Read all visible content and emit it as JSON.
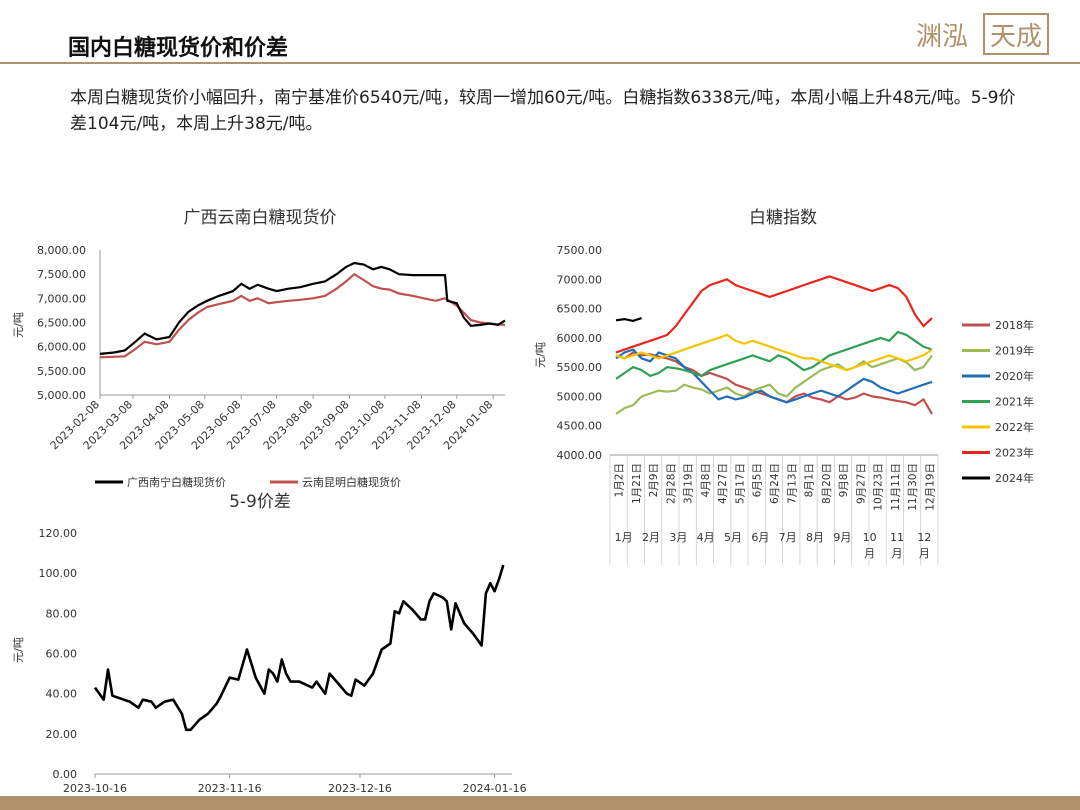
{
  "header": {
    "title": "国内白糖现货价和价差",
    "logo_text": "渊泓天成"
  },
  "summary": "本周白糖现货价小幅回升，南宁基准价6540元/吨，较周一增加60元/吨。白糖指数6338元/吨，本周小幅上升48元/吨。5-9价差104元/吨，本周上升38元/吨。",
  "chart_data": [
    {
      "type": "line",
      "title": "广西云南白糖现货价",
      "ylabel": "元/吨",
      "ylim": [
        5000,
        8000
      ],
      "yticks": [
        "5,000.00",
        "5,500.00",
        "6,000.00",
        "6,500.00",
        "7,000.00",
        "7,500.00",
        "8,000.00"
      ],
      "xticks": [
        "2023-02-08",
        "2023-03-08",
        "2023-04-08",
        "2023-05-08",
        "2023-06-08",
        "2023-07-08",
        "2023-08-08",
        "2023-09-08",
        "2023-10-08",
        "2023-11-08",
        "2023-12-08",
        "2024-01-08"
      ],
      "x_range": [
        "2023-02-08",
        "2024-01-18"
      ],
      "legend_position": "bottom",
      "series": [
        {
          "name": "广西南宁白糖现货价",
          "color": "#000000",
          "points": [
            [
              "2023-02-08",
              5850
            ],
            [
              "2023-02-20",
              5880
            ],
            [
              "2023-03-01",
              5920
            ],
            [
              "2023-03-10",
              6100
            ],
            [
              "2023-03-18",
              6270
            ],
            [
              "2023-03-28",
              6150
            ],
            [
              "2023-04-08",
              6200
            ],
            [
              "2023-04-16",
              6500
            ],
            [
              "2023-04-24",
              6720
            ],
            [
              "2023-05-02",
              6850
            ],
            [
              "2023-05-10",
              6950
            ],
            [
              "2023-05-20",
              7050
            ],
            [
              "2023-06-01",
              7150
            ],
            [
              "2023-06-08",
              7300
            ],
            [
              "2023-06-15",
              7200
            ],
            [
              "2023-06-22",
              7280
            ],
            [
              "2023-07-01",
              7200
            ],
            [
              "2023-07-08",
              7150
            ],
            [
              "2023-07-18",
              7200
            ],
            [
              "2023-07-28",
              7230
            ],
            [
              "2023-08-08",
              7300
            ],
            [
              "2023-08-18",
              7350
            ],
            [
              "2023-08-28",
              7500
            ],
            [
              "2023-09-05",
              7650
            ],
            [
              "2023-09-12",
              7730
            ],
            [
              "2023-09-20",
              7700
            ],
            [
              "2023-09-28",
              7600
            ],
            [
              "2023-10-05",
              7650
            ],
            [
              "2023-10-12",
              7600
            ],
            [
              "2023-10-20",
              7500
            ],
            [
              "2023-11-01",
              7480
            ],
            [
              "2023-11-10",
              7480
            ],
            [
              "2023-11-20",
              7480
            ],
            [
              "2023-11-28",
              7480
            ],
            [
              "2023-11-30",
              6950
            ],
            [
              "2023-12-08",
              6900
            ],
            [
              "2023-12-14",
              6600
            ],
            [
              "2023-12-20",
              6430
            ],
            [
              "2023-12-28",
              6450
            ],
            [
              "2024-01-05",
              6480
            ],
            [
              "2024-01-12",
              6450
            ],
            [
              "2024-01-18",
              6540
            ]
          ]
        },
        {
          "name": "云南昆明白糖现货价",
          "color": "#c0504d",
          "points": [
            [
              "2023-02-08",
              5780
            ],
            [
              "2023-02-20",
              5790
            ],
            [
              "2023-03-01",
              5800
            ],
            [
              "2023-03-10",
              5950
            ],
            [
              "2023-03-18",
              6100
            ],
            [
              "2023-03-28",
              6050
            ],
            [
              "2023-04-08",
              6100
            ],
            [
              "2023-04-16",
              6350
            ],
            [
              "2023-04-24",
              6550
            ],
            [
              "2023-05-02",
              6700
            ],
            [
              "2023-05-10",
              6820
            ],
            [
              "2023-05-20",
              6880
            ],
            [
              "2023-06-01",
              6950
            ],
            [
              "2023-06-08",
              7050
            ],
            [
              "2023-06-15",
              6950
            ],
            [
              "2023-06-22",
              7000
            ],
            [
              "2023-07-01",
              6900
            ],
            [
              "2023-07-08",
              6920
            ],
            [
              "2023-07-18",
              6950
            ],
            [
              "2023-07-28",
              6970
            ],
            [
              "2023-08-08",
              7000
            ],
            [
              "2023-08-18",
              7050
            ],
            [
              "2023-08-28",
              7200
            ],
            [
              "2023-09-05",
              7350
            ],
            [
              "2023-09-12",
              7500
            ],
            [
              "2023-09-20",
              7380
            ],
            [
              "2023-09-28",
              7250
            ],
            [
              "2023-10-05",
              7200
            ],
            [
              "2023-10-12",
              7180
            ],
            [
              "2023-10-20",
              7100
            ],
            [
              "2023-11-01",
              7050
            ],
            [
              "2023-11-10",
              7000
            ],
            [
              "2023-11-20",
              6950
            ],
            [
              "2023-11-28",
              7000
            ],
            [
              "2023-12-08",
              6850
            ],
            [
              "2023-12-14",
              6700
            ],
            [
              "2023-12-20",
              6550
            ],
            [
              "2023-12-28",
              6500
            ],
            [
              "2024-01-05",
              6480
            ],
            [
              "2024-01-12",
              6460
            ],
            [
              "2024-01-18",
              6450
            ]
          ]
        }
      ]
    },
    {
      "type": "line",
      "title": "白糖指数",
      "ylabel": "元/吨",
      "ylim": [
        4000,
        7500
      ],
      "yticks": [
        "4000.00",
        "4500.00",
        "5000.00",
        "5500.00",
        "6000.00",
        "6500.00",
        "7000.00",
        "7500.00"
      ],
      "xticks": [
        "1月2日",
        "1月21日",
        "2月9日",
        "2月28日",
        "3月19日",
        "4月8日",
        "4月27日",
        "5月17日",
        "6月5日",
        "6月24日",
        "7月13日",
        "8月1日",
        "8月20日",
        "9月8日",
        "9月27日",
        "10月23日",
        "11月11日",
        "11月30日",
        "12月19日"
      ],
      "month_labels": [
        "1月",
        "2月",
        "3月",
        "4月",
        "5月",
        "6月",
        "7月",
        "8月",
        "9月",
        "10月",
        "11月",
        "12月"
      ],
      "legend_position": "right",
      "series": [
        {
          "name": "2018年",
          "color": "#c0504d",
          "values": [
            5700,
            5650,
            5750,
            5700,
            5720,
            5680,
            5650,
            5600,
            5500,
            5450,
            5350,
            5400,
            5350,
            5300,
            5200,
            5150,
            5100,
            5050,
            5000,
            4950,
            4900,
            5000,
            5050,
            4980,
            4950,
            4900,
            5000,
            4950,
            4980,
            5050,
            5000,
            4980,
            4950,
            4920,
            4900,
            4850,
            4950,
            4700
          ]
        },
        {
          "name": "2019年",
          "color": "#9bbb59",
          "values": [
            4700,
            4800,
            4850,
            5000,
            5050,
            5100,
            5080,
            5100,
            5200,
            5150,
            5120,
            5050,
            5100,
            5150,
            5050,
            5000,
            5100,
            5150,
            5200,
            5050,
            5000,
            5150,
            5250,
            5350,
            5450,
            5500,
            5550,
            5450,
            5500,
            5600,
            5500,
            5550,
            5600,
            5650,
            5580,
            5450,
            5500,
            5700
          ]
        },
        {
          "name": "2020年",
          "color": "#1f6fb5",
          "values": [
            5650,
            5750,
            5800,
            5650,
            5600,
            5750,
            5700,
            5650,
            5500,
            5400,
            5250,
            5100,
            4950,
            5000,
            4950,
            4980,
            5050,
            5100,
            5000,
            4950,
            4900,
            4950,
            5000,
            5050,
            5100,
            5050,
            5000,
            5100,
            5200,
            5300,
            5250,
            5150,
            5100,
            5050,
            5100,
            5150,
            5200,
            5250
          ]
        },
        {
          "name": "2021年",
          "color": "#2ea152",
          "values": [
            5300,
            5400,
            5500,
            5450,
            5350,
            5400,
            5500,
            5480,
            5450,
            5400,
            5350,
            5450,
            5500,
            5550,
            5600,
            5650,
            5700,
            5650,
            5600,
            5700,
            5650,
            5550,
            5450,
            5500,
            5600,
            5700,
            5750,
            5800,
            5850,
            5900,
            5950,
            6000,
            5950,
            6100,
            6050,
            5950,
            5850,
            5800
          ]
        },
        {
          "name": "2022年",
          "color": "#f5c400",
          "values": [
            5700,
            5650,
            5700,
            5750,
            5700,
            5650,
            5700,
            5750,
            5800,
            5850,
            5900,
            5950,
            6000,
            6050,
            5950,
            5900,
            5950,
            5900,
            5850,
            5800,
            5750,
            5700,
            5650,
            5650,
            5600,
            5550,
            5500,
            5450,
            5500,
            5550,
            5600,
            5650,
            5700,
            5650,
            5600,
            5650,
            5700,
            5800
          ]
        },
        {
          "name": "2023年",
          "color": "#e8261c",
          "values": [
            5750,
            5800,
            5850,
            5900,
            5950,
            6000,
            6050,
            6200,
            6400,
            6600,
            6800,
            6900,
            6950,
            7000,
            6900,
            6850,
            6800,
            6750,
            6700,
            6750,
            6800,
            6850,
            6900,
            6950,
            7000,
            7050,
            7000,
            6950,
            6900,
            6850,
            6800,
            6850,
            6900,
            6850,
            6700,
            6400,
            6200,
            6338
          ]
        },
        {
          "name": "2024年",
          "color": "#000000",
          "values": [
            6300,
            6320,
            6290,
            6338
          ]
        }
      ]
    },
    {
      "type": "line",
      "title": "5-9价差",
      "ylabel": "元/吨",
      "ylim": [
        0,
        120
      ],
      "yticks": [
        "0.00",
        "20.00",
        "40.00",
        "60.00",
        "80.00",
        "100.00",
        "120.00"
      ],
      "xticks": [
        "2023-10-16",
        "2023-11-16",
        "2023-12-16",
        "2024-01-16"
      ],
      "x_range": [
        "2023-10-16",
        "2024-01-20"
      ],
      "series": [
        {
          "name": "5-9价差",
          "color": "#000000",
          "points": [
            [
              "2023-10-16",
              43
            ],
            [
              "2023-10-18",
              37
            ],
            [
              "2023-10-19",
              52
            ],
            [
              "2023-10-20",
              39
            ],
            [
              "2023-10-24",
              36
            ],
            [
              "2023-10-26",
              33
            ],
            [
              "2023-10-27",
              37
            ],
            [
              "2023-10-29",
              36
            ],
            [
              "2023-10-30",
              33
            ],
            [
              "2023-11-01",
              36
            ],
            [
              "2023-11-03",
              37
            ],
            [
              "2023-11-05",
              30
            ],
            [
              "2023-11-06",
              22
            ],
            [
              "2023-11-07",
              22
            ],
            [
              "2023-11-09",
              27
            ],
            [
              "2023-11-11",
              30
            ],
            [
              "2023-11-13",
              35
            ],
            [
              "2023-11-14",
              39
            ],
            [
              "2023-11-16",
              48
            ],
            [
              "2023-11-18",
              47
            ],
            [
              "2023-11-20",
              62
            ],
            [
              "2023-11-22",
              48
            ],
            [
              "2023-11-24",
              40
            ],
            [
              "2023-11-25",
              52
            ],
            [
              "2023-11-26",
              50
            ],
            [
              "2023-11-27",
              46
            ],
            [
              "2023-11-28",
              57
            ],
            [
              "2023-11-29",
              50
            ],
            [
              "2023-11-30",
              46
            ],
            [
              "2023-12-02",
              46
            ],
            [
              "2023-12-05",
              43
            ],
            [
              "2023-12-06",
              46
            ],
            [
              "2023-12-08",
              40
            ],
            [
              "2023-12-09",
              50
            ],
            [
              "2023-12-11",
              45
            ],
            [
              "2023-12-13",
              40
            ],
            [
              "2023-12-14",
              39
            ],
            [
              "2023-12-15",
              47
            ],
            [
              "2023-12-17",
              44
            ],
            [
              "2023-12-19",
              50
            ],
            [
              "2023-12-21",
              62
            ],
            [
              "2023-12-23",
              65
            ],
            [
              "2023-12-24",
              81
            ],
            [
              "2023-12-25",
              80
            ],
            [
              "2023-12-26",
              86
            ],
            [
              "2023-12-28",
              82
            ],
            [
              "2023-12-30",
              77
            ],
            [
              "2023-12-31",
              77
            ],
            [
              "2024-01-01",
              86
            ],
            [
              "2024-01-02",
              90
            ],
            [
              "2024-01-04",
              88
            ],
            [
              "2024-01-05",
              86
            ],
            [
              "2024-01-06",
              72
            ],
            [
              "2024-01-07",
              85
            ],
            [
              "2024-01-09",
              75
            ],
            [
              "2024-01-11",
              70
            ],
            [
              "2024-01-12",
              67
            ],
            [
              "2024-01-13",
              64
            ],
            [
              "2024-01-14",
              90
            ],
            [
              "2024-01-15",
              95
            ],
            [
              "2024-01-16",
              91
            ],
            [
              "2024-01-17",
              97
            ],
            [
              "2024-01-18",
              104
            ]
          ]
        }
      ]
    }
  ]
}
